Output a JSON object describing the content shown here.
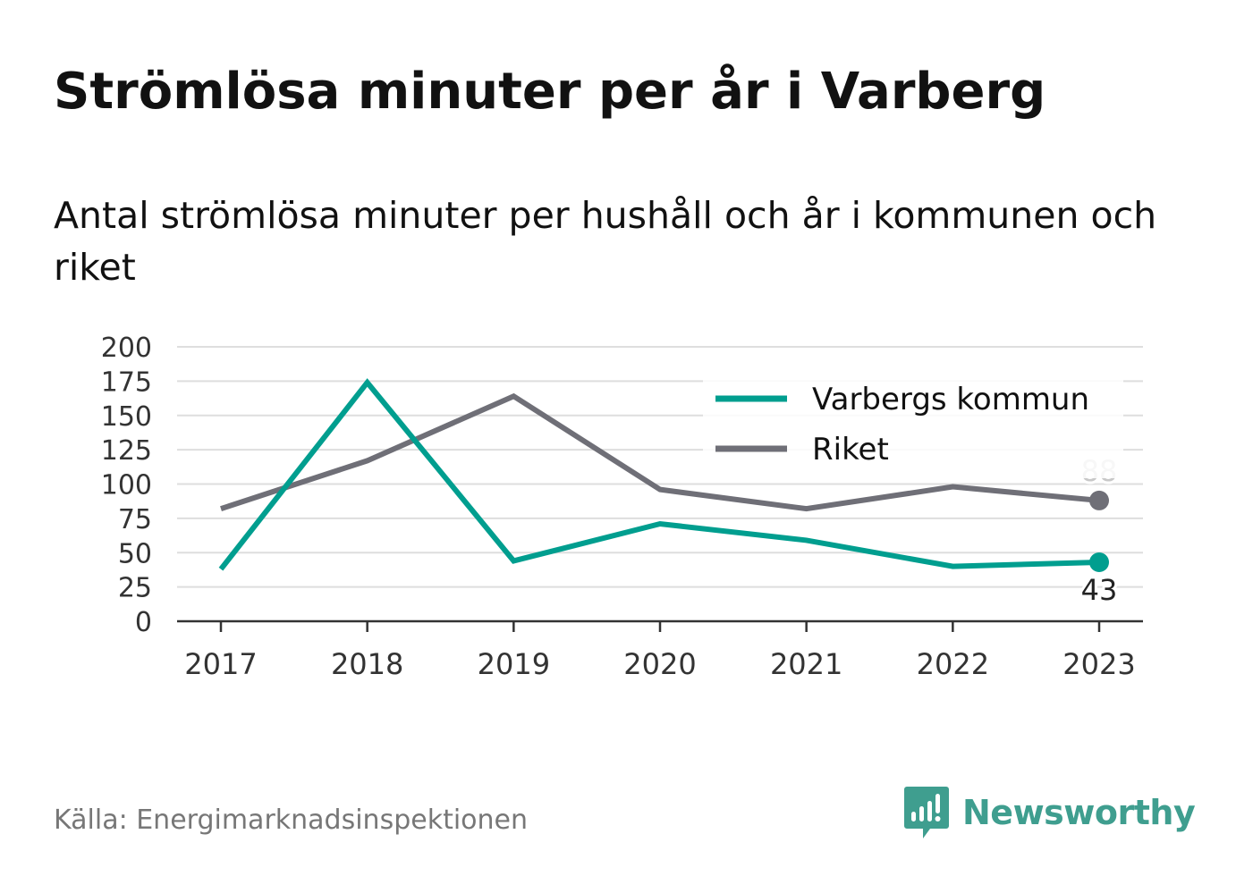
{
  "title": "Strömlösa minuter per år i Varberg",
  "subtitle": "Antal strömlösa minuter per hushåll och år i kommunen och riket",
  "source": "Källa: Energimarknadsinspektionen",
  "brand": {
    "name": "Newsworthy",
    "icon": "bar-chart-speech-bubble-icon",
    "color": "#3f9e8f"
  },
  "chart_data": {
    "type": "line",
    "x": [
      "2017",
      "2018",
      "2019",
      "2020",
      "2021",
      "2022",
      "2023"
    ],
    "yticks": [
      "0",
      "25",
      "50",
      "75",
      "100",
      "125",
      "150",
      "175",
      "200"
    ],
    "ylim": [
      0,
      200
    ],
    "grid": true,
    "legend_position": "top-right",
    "series": [
      {
        "name": "Varbergs kommun",
        "color": "#009e8f",
        "values": [
          38,
          174,
          44,
          71,
          59,
          40,
          43
        ],
        "end_label": "43"
      },
      {
        "name": "Riket",
        "color": "#6f6f77",
        "values": [
          82,
          117,
          164,
          96,
          82,
          98,
          88
        ],
        "end_label": "88"
      }
    ]
  }
}
